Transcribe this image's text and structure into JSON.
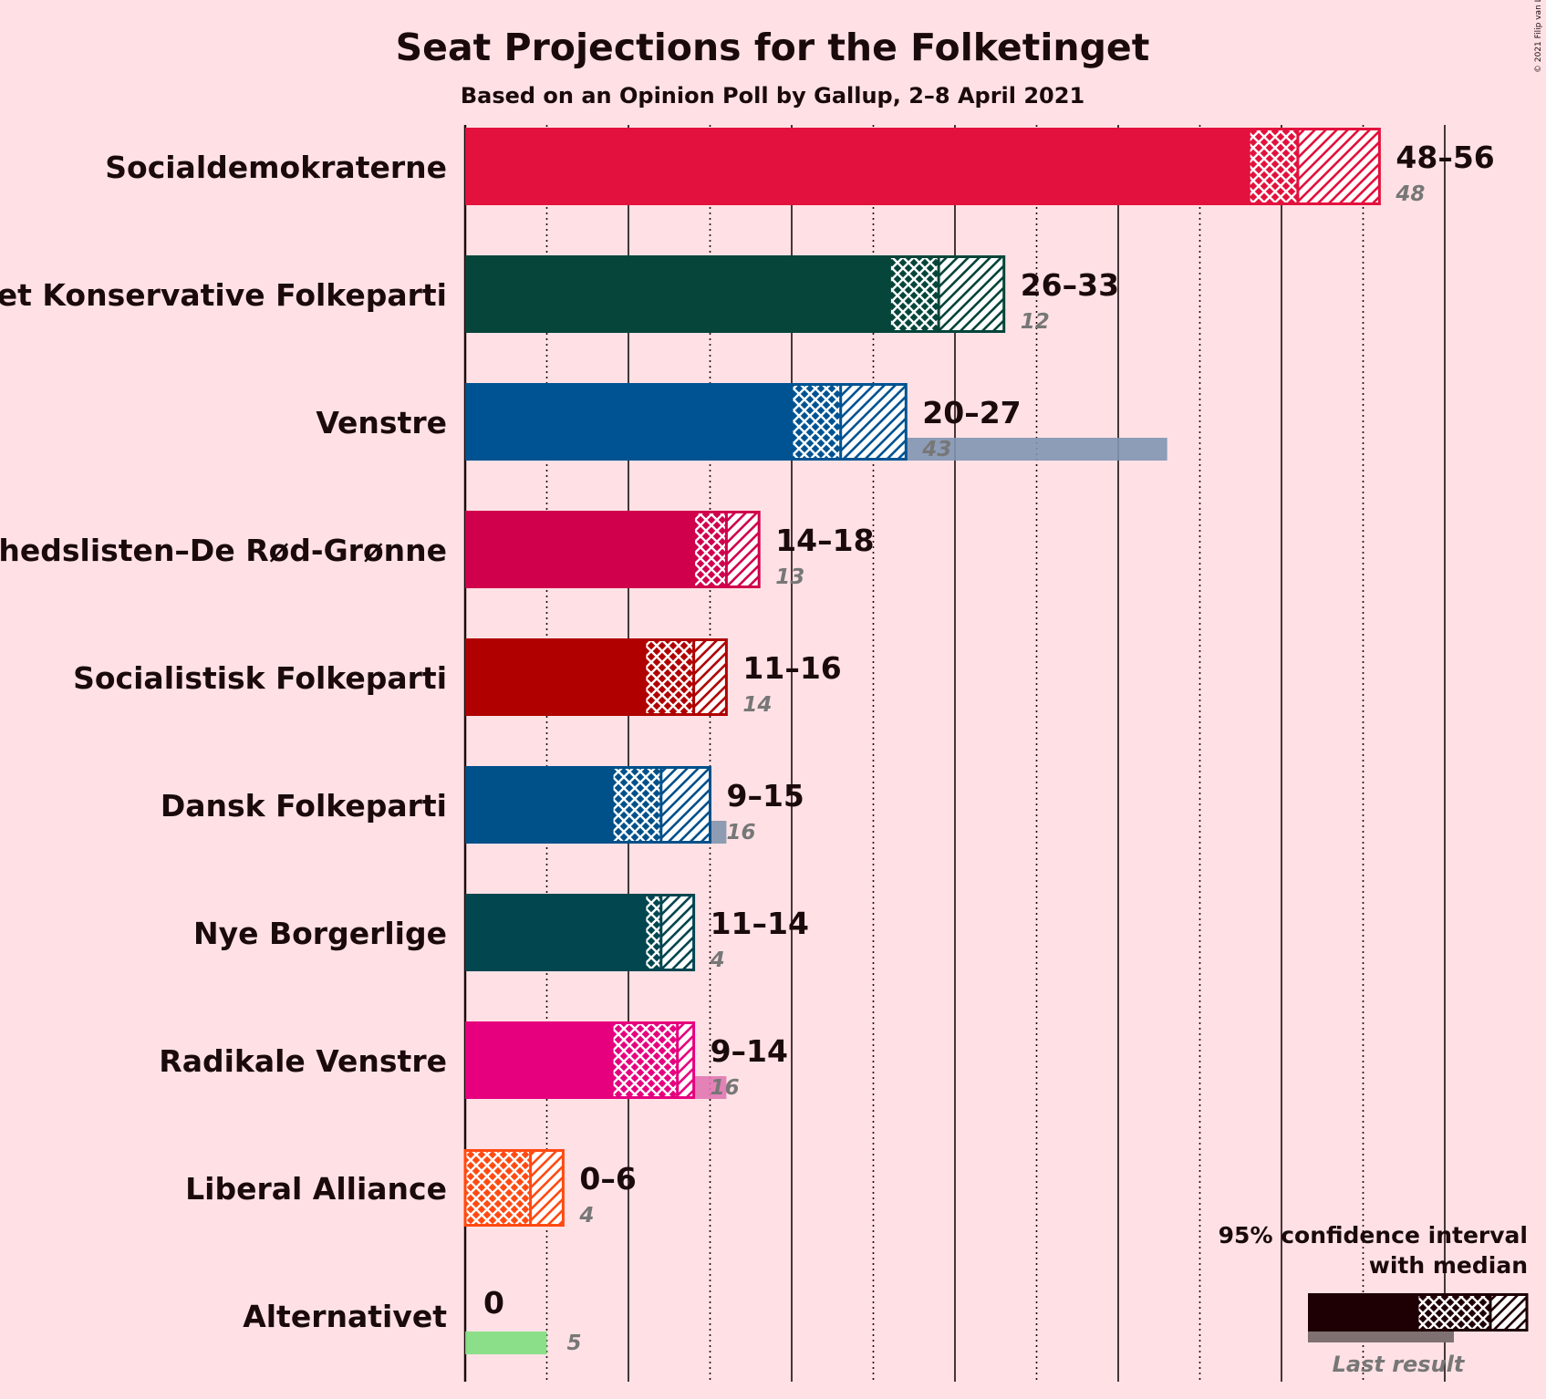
{
  "chart_data": {
    "type": "bar",
    "title": "Seat Projections for the Folketinget",
    "subtitle": "Based on an Opinion Poll by Gallup, 2–8 April 2021",
    "copyright": "© 2021 Filip van Laenen",
    "x_range": [
      0,
      60
    ],
    "grid": true,
    "categories": [
      "Socialdemokraterne",
      "Det Konservative Folkeparti",
      "Venstre",
      "Enhedslisten–De Rød-Grønne",
      "Socialistisk Folkeparti",
      "Dansk Folkeparti",
      "Nye Borgerlige",
      "Radikale Venstre",
      "Liberal Alliance",
      "Alternativet"
    ],
    "parties": [
      {
        "name": "Socialdemokraterne",
        "low": 48,
        "median": 51,
        "high": 56,
        "range_label": "48–56",
        "last": 48,
        "last_label": "48",
        "color": "#E3113D",
        "last_color": "#DE7B8D"
      },
      {
        "name": "Det Konservative Folkeparti",
        "low": 26,
        "median": 29,
        "high": 33,
        "range_label": "26–33",
        "last": 12,
        "last_label": "12",
        "color": "#06453A",
        "last_color": "#7D8582"
      },
      {
        "name": "Venstre",
        "low": 20,
        "median": 23,
        "high": 27,
        "range_label": "20–27",
        "last": 43,
        "last_label": "43",
        "color": "#005392",
        "last_color": "#8195B1"
      },
      {
        "name": "Enhedslisten–De Rød-Grønne",
        "low": 14,
        "median": 16,
        "high": 18,
        "range_label": "14–18",
        "last": 13,
        "last_label": "13",
        "color": "#D0004D",
        "last_color": "#D87894"
      },
      {
        "name": "Socialistisk Folkeparti",
        "low": 11,
        "median": 14,
        "high": 16,
        "range_label": "11–16",
        "last": 14,
        "last_label": "14",
        "color": "#B00000",
        "last_color": "#C97678"
      },
      {
        "name": "Dansk Folkeparti",
        "low": 9,
        "median": 12,
        "high": 15,
        "range_label": "9–15",
        "last": 16,
        "last_label": "16",
        "color": "#00508A",
        "last_color": "#8194AD"
      },
      {
        "name": "Nye Borgerlige",
        "low": 11,
        "median": 12,
        "high": 14,
        "range_label": "11–14",
        "last": 4,
        "last_label": "4",
        "color": "#024650",
        "last_color": "#7D8587"
      },
      {
        "name": "Radikale Venstre",
        "low": 9,
        "median": 13,
        "high": 14,
        "range_label": "9–14",
        "last": 16,
        "last_label": "16",
        "color": "#E6007E",
        "last_color": "#E178B2"
      },
      {
        "name": "Liberal Alliance",
        "low": 0,
        "median": 4,
        "high": 6,
        "range_label": "0–6",
        "last": 4,
        "last_label": "4",
        "color": "#FF4A12",
        "last_color": "#EC8A72"
      },
      {
        "name": "Alternativet",
        "low": 0,
        "median": 0,
        "high": 0,
        "range_label": "0",
        "last": 5,
        "last_label": "5",
        "color": "#2B8738",
        "last_color": "#7EDF7E"
      }
    ],
    "legend": {
      "line1": "95% confidence interval",
      "line2": "with median",
      "last_result": "Last result",
      "color": "#1E0004",
      "last_color": "#7F7172",
      "position": "bottom-right"
    }
  }
}
